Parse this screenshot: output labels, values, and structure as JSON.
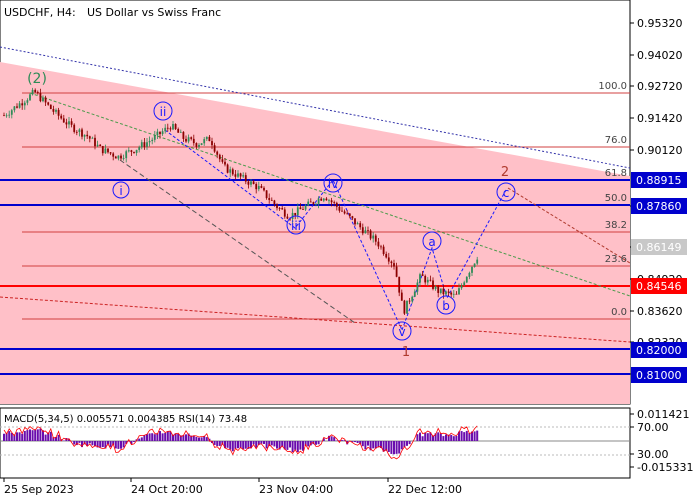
{
  "header": {
    "symbol": "USDCHF, H4:",
    "description": "US Dollar vs Swiss Franc"
  },
  "colors": {
    "bull": "#2e8b57",
    "bear": "#8b0000",
    "channel_fill": "#ffc0c8",
    "fib_line": "#d04040",
    "support_resistance_blue": "#0000cd",
    "key_level_red": "#ff0000",
    "wave_blue": "#1a1aff",
    "wave_red": "#b03a2e",
    "macd_hist": "#6a0dad",
    "rsi_line": "#ff0000"
  },
  "price_axis": {
    "ticks": [
      "0.95320",
      "0.94020",
      "0.92720",
      "0.91420",
      "0.90120",
      "0.87860",
      "0.86149",
      "0.84920",
      "0.83620",
      "0.82320",
      "0.81000"
    ],
    "highlighted": [
      {
        "label": "0.88915",
        "color": "#0000cd"
      },
      {
        "label": "0.87860",
        "color": "#0000cd"
      },
      {
        "label": "0.86149",
        "color": "#c8c8c8"
      },
      {
        "label": "0.84546",
        "color": "#ff0000"
      },
      {
        "label": "0.82000",
        "color": "#0000cd"
      },
      {
        "label": "0.81000",
        "color": "#0000cd"
      }
    ]
  },
  "fib_labels": [
    "100.0",
    "76.0",
    "61.8",
    "50.0",
    "38.2",
    "23.6",
    "0.0"
  ],
  "wave_labels": {
    "major_2": "(2)",
    "minor": [
      "i",
      "ii",
      "iii",
      "iv",
      "v"
    ],
    "correction": [
      "a",
      "b",
      "c"
    ],
    "wave_1": "1",
    "wave_2": "2"
  },
  "indicator": {
    "header": "MACD(5,34,5) 0.005571 0.004385 RSI(14) 73.48",
    "axis": [
      "0.011421",
      "70.00",
      "30.00",
      "-0.015331"
    ]
  },
  "time_axis": [
    "25 Sep 2023",
    "24 Oct 20:00",
    "23 Nov 04:00",
    "22 Dec 12:00"
  ],
  "chart_data": {
    "type": "candlestick",
    "title": "USDCHF, H4: US Dollar vs Swiss Franc",
    "ylim": [
      0.805,
      0.958
    ],
    "x_range": [
      "2023-09-22",
      "2024-01-08"
    ],
    "path": [
      [
        "2023-09-22",
        0.915
      ],
      [
        "2023-09-26",
        0.92
      ],
      [
        "2023-09-29",
        0.924
      ],
      [
        "2023-10-03",
        0.917
      ],
      [
        "2023-10-07",
        0.911
      ],
      [
        "2023-10-11",
        0.907
      ],
      [
        "2023-10-14",
        0.902
      ],
      [
        "2023-10-18",
        0.899
      ],
      [
        "2023-10-22",
        0.902
      ],
      [
        "2023-10-26",
        0.906
      ],
      [
        "2023-10-30",
        0.911
      ],
      [
        "2023-11-02",
        0.906
      ],
      [
        "2023-11-05",
        0.904
      ],
      [
        "2023-11-08",
        0.906
      ],
      [
        "2023-11-11",
        0.895
      ],
      [
        "2023-11-15",
        0.891
      ],
      [
        "2023-11-19",
        0.887
      ],
      [
        "2023-11-23",
        0.88
      ],
      [
        "2023-11-26",
        0.876
      ],
      [
        "2023-11-30",
        0.88
      ],
      [
        "2023-12-04",
        0.884
      ],
      [
        "2023-12-08",
        0.878
      ],
      [
        "2023-12-12",
        0.872
      ],
      [
        "2023-12-16",
        0.866
      ],
      [
        "2023-12-20",
        0.857
      ],
      [
        "2023-12-22",
        0.839
      ],
      [
        "2023-12-26",
        0.853
      ],
      [
        "2023-12-30",
        0.847
      ],
      [
        "2024-01-03",
        0.845
      ],
      [
        "2024-01-05",
        0.852
      ],
      [
        "2024-01-08",
        0.861
      ]
    ],
    "fib_levels": [
      0.9273,
      0.9102,
      0.903,
      0.892,
      0.8838,
      0.87,
      0.8375
    ],
    "key_levels": {
      "blue": [
        0.88915,
        0.8786,
        0.82,
        0.81
      ],
      "red": 0.84546,
      "current": 0.86149
    }
  }
}
